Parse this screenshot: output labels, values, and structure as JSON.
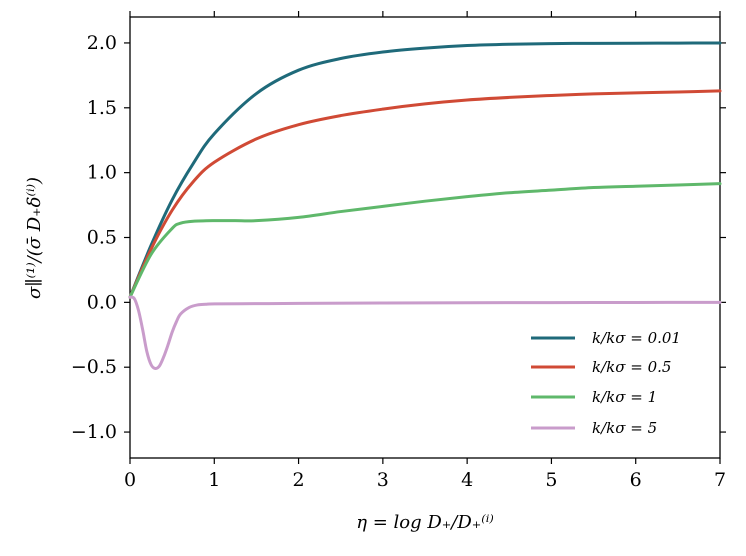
{
  "chart_data": {
    "type": "line",
    "xlabel": "η = log D₊/D₊⁽ⁱ⁾",
    "ylabel": "σ∥⁽¹⁾/(σ̄ D₊δ⁽ⁱ⁾)",
    "xlim": [
      0,
      7
    ],
    "ylim": [
      -1.2,
      2.2
    ],
    "xticks": [
      0,
      1,
      2,
      3,
      4,
      5,
      6,
      7
    ],
    "xtick_labels": [
      "0",
      "1",
      "2",
      "3",
      "4",
      "5",
      "6",
      "7"
    ],
    "yticks": [
      -1.0,
      -0.5,
      0.0,
      0.5,
      1.0,
      1.5,
      2.0
    ],
    "ytick_labels": [
      "−1.0",
      "−0.5",
      "0.0",
      "0.5",
      "1.0",
      "1.5",
      "2.0"
    ],
    "grid": false,
    "legend_position": "lower-right",
    "series": [
      {
        "name": "k/kσ = 0.01",
        "color": "#1f6a7a",
        "x": [
          0,
          0.25,
          0.5,
          0.75,
          1.0,
          1.5,
          2.0,
          2.5,
          3.0,
          3.5,
          4.0,
          4.5,
          5.0,
          5.5,
          6.0,
          6.5,
          7.0
        ],
        "y": [
          0.04,
          0.44,
          0.79,
          1.07,
          1.3,
          1.61,
          1.79,
          1.88,
          1.93,
          1.96,
          1.98,
          1.99,
          1.995,
          1.997,
          1.998,
          1.999,
          2.0
        ]
      },
      {
        "name": "k/kσ = 0.5",
        "color": "#d04a35",
        "x": [
          0,
          0.25,
          0.5,
          0.75,
          1.0,
          1.5,
          2.0,
          2.5,
          3.0,
          3.5,
          4.0,
          4.5,
          5.0,
          5.5,
          6.0,
          6.5,
          7.0
        ],
        "y": [
          0.04,
          0.41,
          0.71,
          0.93,
          1.08,
          1.26,
          1.37,
          1.44,
          1.49,
          1.53,
          1.56,
          1.58,
          1.595,
          1.607,
          1.615,
          1.622,
          1.63
        ]
      },
      {
        "name": "k/kσ = 1",
        "color": "#5fb86b",
        "x": [
          0,
          0.25,
          0.5,
          0.6,
          0.75,
          1.0,
          1.25,
          1.5,
          2.0,
          2.5,
          3.0,
          3.5,
          4.0,
          4.5,
          5.0,
          5.5,
          6.0,
          6.5,
          7.0
        ],
        "y": [
          0.04,
          0.37,
          0.57,
          0.61,
          0.625,
          0.63,
          0.63,
          0.63,
          0.655,
          0.7,
          0.74,
          0.78,
          0.815,
          0.845,
          0.865,
          0.885,
          0.895,
          0.905,
          0.915
        ]
      },
      {
        "name": "k/kσ = 5",
        "color": "#c99ccb",
        "x": [
          0,
          0.05,
          0.1,
          0.15,
          0.2,
          0.25,
          0.3,
          0.35,
          0.4,
          0.45,
          0.5,
          0.55,
          0.6,
          0.7,
          0.8,
          0.9,
          1.0,
          1.5,
          2.0,
          3.0,
          4.0,
          5.0,
          6.0,
          7.0
        ],
        "y": [
          0.04,
          0.03,
          -0.06,
          -0.21,
          -0.38,
          -0.48,
          -0.51,
          -0.49,
          -0.42,
          -0.33,
          -0.23,
          -0.15,
          -0.09,
          -0.04,
          -0.02,
          -0.015,
          -0.012,
          -0.01,
          -0.008,
          -0.005,
          -0.003,
          -0.002,
          -0.001,
          0.0
        ]
      }
    ]
  }
}
